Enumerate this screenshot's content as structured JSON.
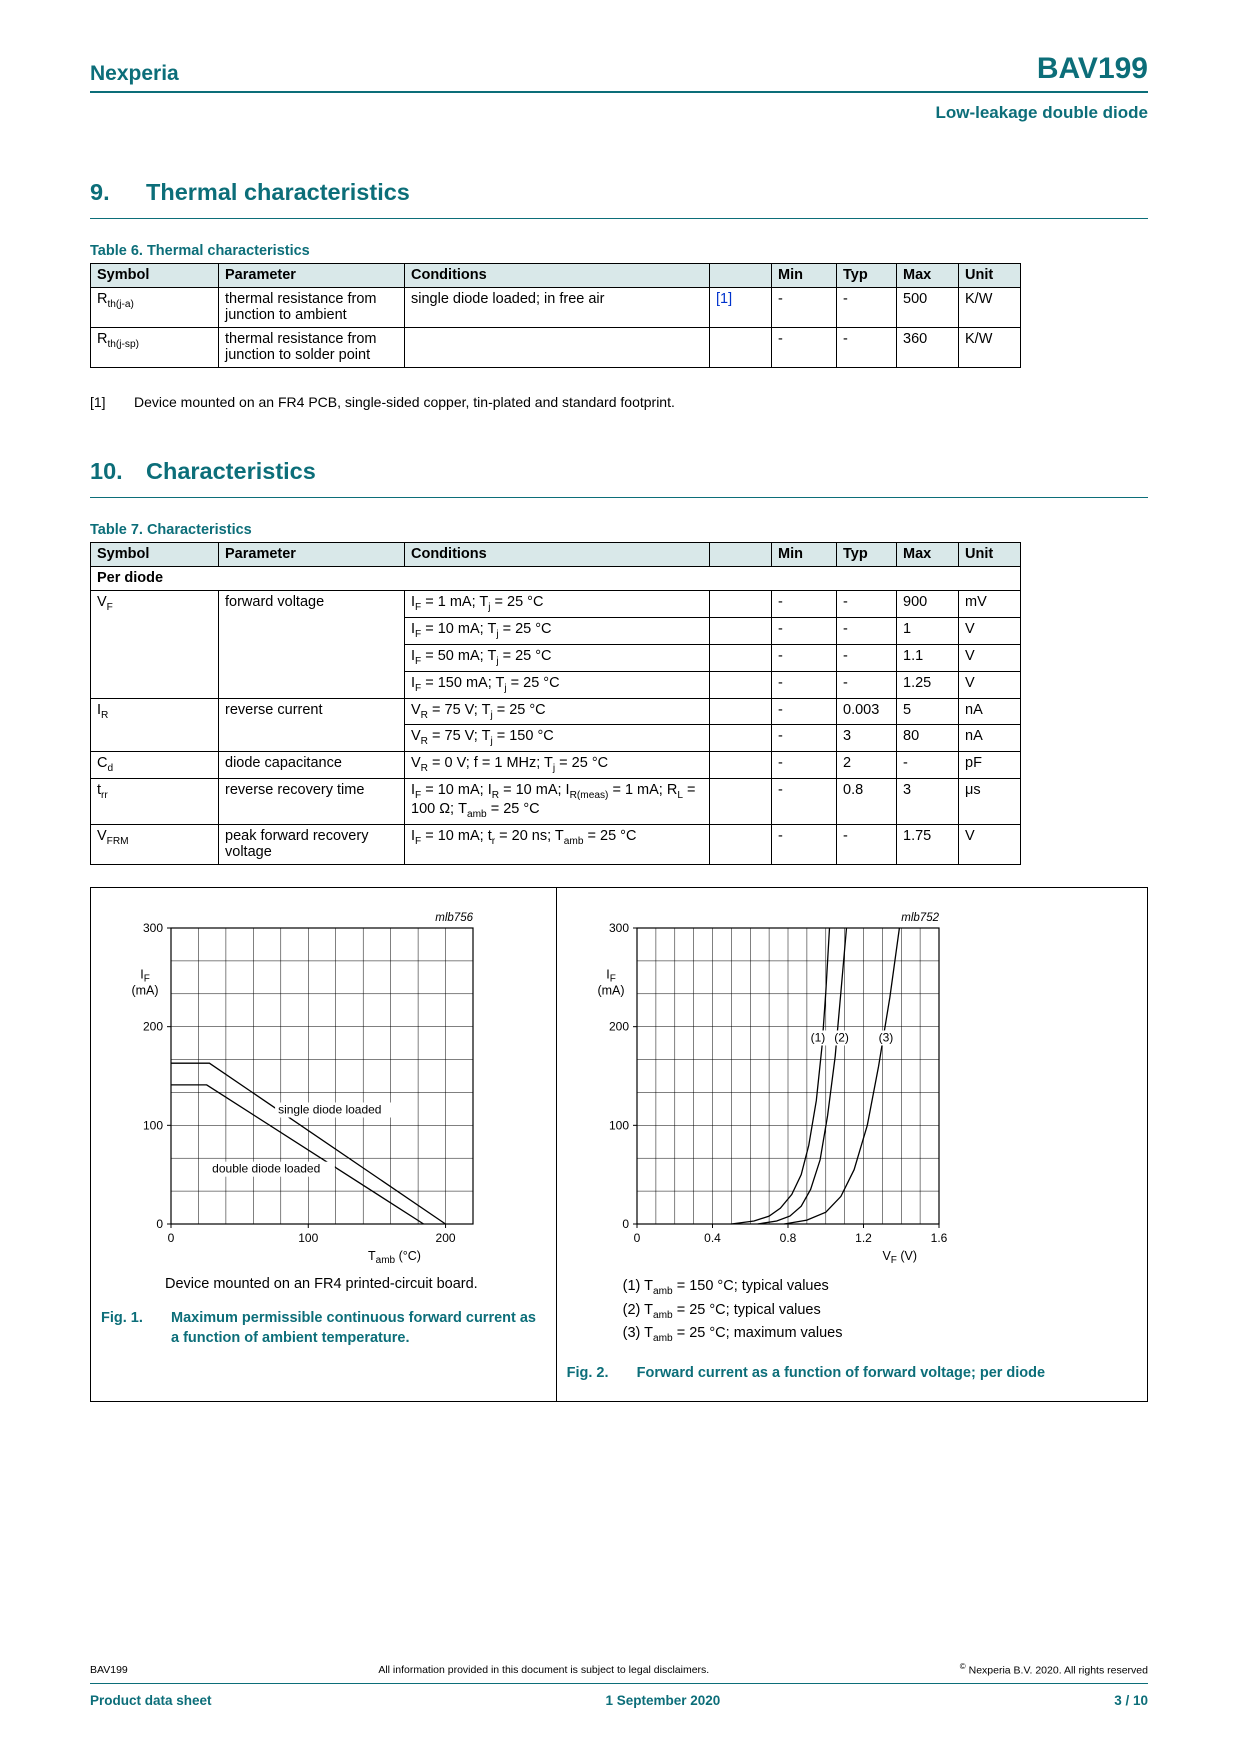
{
  "colors": {
    "accent": "#0c6e79",
    "link": "#0033cc",
    "table_header_bg": "#d9e8e9"
  },
  "header": {
    "brand": "Nexperia",
    "part": "BAV199",
    "subtitle": "Low-leakage double diode"
  },
  "thermal": {
    "number": "9.",
    "title": "Thermal characteristics",
    "table_caption": "Table 6. Thermal characteristics",
    "table": {
      "columns": [
        "Symbol",
        "Parameter",
        "Conditions",
        "",
        "Min",
        "Typ",
        "Max",
        "Unit"
      ],
      "rows": [
        [
          {
            "v": "R<sub>th(j-a)</sub>"
          },
          {
            "v": "thermal resistance from junction to ambient"
          },
          {
            "v": "single diode loaded; in free air"
          },
          {
            "v": "[1]",
            "link": true
          },
          {
            "v": "-"
          },
          {
            "v": "-"
          },
          {
            "v": "500"
          },
          {
            "v": "K/W"
          }
        ],
        [
          {
            "v": "R<sub>th(j-sp)</sub>"
          },
          {
            "v": "thermal resistance from junction to solder point"
          },
          {
            "v": ""
          },
          {
            "v": ""
          },
          {
            "v": "-"
          },
          {
            "v": "-"
          },
          {
            "v": "360"
          },
          {
            "v": "K/W"
          }
        ]
      ]
    },
    "footnote_ref": "[1]",
    "footnote_text": "Device mounted on an FR4 PCB, single-sided copper, tin-plated and standard footprint."
  },
  "characteristics": {
    "number": "10.",
    "title": "Characteristics",
    "table_caption": "Table 7. Characteristics",
    "table": {
      "columns": [
        "Symbol",
        "Parameter",
        "Conditions",
        "",
        "Min",
        "Typ",
        "Max",
        "Unit"
      ],
      "rows": [
        [
          {
            "v": "Per diode",
            "cs": 8,
            "cls": "group"
          }
        ],
        [
          {
            "v": "V<sub>F</sub>",
            "rs": 4
          },
          {
            "v": "forward voltage",
            "rs": 4
          },
          {
            "v": "I<sub>F</sub> = 1 mA; T<sub>j</sub> = 25 °C"
          },
          {
            "v": ""
          },
          {
            "v": "-"
          },
          {
            "v": "-"
          },
          {
            "v": "900"
          },
          {
            "v": "mV"
          }
        ],
        [
          {
            "v": "I<sub>F</sub> = 10 mA; T<sub>j</sub> = 25 °C"
          },
          {
            "v": ""
          },
          {
            "v": "-"
          },
          {
            "v": "-"
          },
          {
            "v": "1"
          },
          {
            "v": "V"
          }
        ],
        [
          {
            "v": "I<sub>F</sub> = 50 mA; T<sub>j</sub> = 25 °C"
          },
          {
            "v": ""
          },
          {
            "v": "-"
          },
          {
            "v": "-"
          },
          {
            "v": "1.1"
          },
          {
            "v": "V"
          }
        ],
        [
          {
            "v": "I<sub>F</sub> = 150 mA; T<sub>j</sub> = 25 °C"
          },
          {
            "v": ""
          },
          {
            "v": "-"
          },
          {
            "v": "-"
          },
          {
            "v": "1.25"
          },
          {
            "v": "V"
          }
        ],
        [
          {
            "v": "I<sub>R</sub>",
            "rs": 2
          },
          {
            "v": "reverse current",
            "rs": 2
          },
          {
            "v": "V<sub>R</sub> = 75 V; T<sub>j</sub> = 25 °C"
          },
          {
            "v": ""
          },
          {
            "v": "-"
          },
          {
            "v": "0.003"
          },
          {
            "v": "5"
          },
          {
            "v": "nA"
          }
        ],
        [
          {
            "v": "V<sub>R</sub> = 75 V; T<sub>j</sub> = 150 °C"
          },
          {
            "v": ""
          },
          {
            "v": "-"
          },
          {
            "v": "3"
          },
          {
            "v": "80"
          },
          {
            "v": "nA"
          }
        ],
        [
          {
            "v": "C<sub>d</sub>"
          },
          {
            "v": "diode capacitance"
          },
          {
            "v": "V<sub>R</sub> = 0 V; f = 1 MHz; T<sub>j</sub> = 25 °C"
          },
          {
            "v": ""
          },
          {
            "v": "-"
          },
          {
            "v": "2"
          },
          {
            "v": "-"
          },
          {
            "v": "pF"
          }
        ],
        [
          {
            "v": "t<sub>rr</sub>"
          },
          {
            "v": "reverse recovery time"
          },
          {
            "v": "I<sub>F</sub> = 10 mA; I<sub>R</sub> = 10 mA; I<sub>R(meas)</sub> = 1 mA; R<sub>L</sub> = 100 Ω; T<sub>amb</sub> = 25 °C"
          },
          {
            "v": ""
          },
          {
            "v": "-"
          },
          {
            "v": "0.8"
          },
          {
            "v": "3"
          },
          {
            "v": "μs"
          }
        ],
        [
          {
            "v": "V<sub>FRM</sub>"
          },
          {
            "v": "peak forward recovery voltage"
          },
          {
            "v": "I<sub>F</sub> = 10 mA; t<sub>r</sub> = 20 ns; T<sub>amb</sub> = 25 °C"
          },
          {
            "v": ""
          },
          {
            "v": "-"
          },
          {
            "v": "-"
          },
          {
            "v": "1.75"
          },
          {
            "v": "V"
          }
        ]
      ]
    }
  },
  "figures": {
    "fig1": {
      "note": "Device mounted on an FR4 printed-circuit board.",
      "label": "Fig. 1.",
      "caption": "Maximum permissible continuous forward current as a function of ambient temperature."
    },
    "fig2": {
      "notes": [
        "(1) T<sub>amb</sub> = 150 °C; typical values",
        "(2) T<sub>amb</sub> = 25 °C; typical values",
        "(3) T<sub>amb</sub> = 25 °C; maximum values"
      ],
      "label": "Fig. 2.",
      "caption": "Forward current as a function of forward voltage; per diode"
    }
  },
  "chart_data": [
    {
      "type": "line",
      "id": "mlb756",
      "xlabel_main": "T",
      "xlabel_sub": "amb",
      "xlabel_unit": "(°C)",
      "xlabel_frac": 0.74,
      "ylabel_main": "I",
      "ylabel_sub": "F",
      "ylabel_unit": "(mA)",
      "xlim": [
        0,
        220
      ],
      "ylim": [
        0,
        300
      ],
      "x_ticks": [
        0,
        100,
        200
      ],
      "y_ticks": [
        0,
        100,
        200,
        300
      ],
      "x_divisions": 11,
      "y_divisions": 9,
      "series": [
        {
          "name": "single diode loaded",
          "points": [
            [
              0,
              163
            ],
            [
              28,
              163
            ],
            [
              200,
              0
            ]
          ]
        },
        {
          "name": "double diode loaded",
          "points": [
            [
              0,
              141
            ],
            [
              26,
              141
            ],
            [
              184,
              0
            ]
          ]
        }
      ],
      "annotations": [
        {
          "text": "single diode loaded",
          "x": 78,
          "y": 112
        },
        {
          "text": "double diode loaded",
          "x": 30,
          "y": 52
        }
      ]
    },
    {
      "type": "line",
      "id": "mlb752",
      "xlabel_main": "V",
      "xlabel_sub": "F",
      "xlabel_unit": "(V)",
      "xlabel_frac": 0.87,
      "ylabel_main": "I",
      "ylabel_sub": "F",
      "ylabel_unit": "(mA)",
      "xlim": [
        0,
        1.6
      ],
      "ylim": [
        0,
        300
      ],
      "x_ticks": [
        0,
        0.4,
        0.8,
        1.2,
        1.6
      ],
      "y_ticks": [
        0,
        100,
        200,
        300
      ],
      "x_divisions": 16,
      "y_divisions": 9,
      "series": [
        {
          "name": "(1) Tamb = 150 °C; typical values",
          "points": [
            [
              0.5,
              0
            ],
            [
              0.62,
              3
            ],
            [
              0.7,
              8
            ],
            [
              0.76,
              16
            ],
            [
              0.82,
              30
            ],
            [
              0.87,
              50
            ],
            [
              0.91,
              80
            ],
            [
              0.95,
              125
            ],
            [
              0.98,
              180
            ],
            [
              1.0,
              235
            ],
            [
              1.02,
              300
            ]
          ]
        },
        {
          "name": "(2) Tamb = 25 °C; typical values",
          "points": [
            [
              0.64,
              0
            ],
            [
              0.74,
              3
            ],
            [
              0.81,
              8
            ],
            [
              0.87,
              18
            ],
            [
              0.92,
              35
            ],
            [
              0.97,
              65
            ],
            [
              1.01,
              110
            ],
            [
              1.05,
              170
            ],
            [
              1.08,
              235
            ],
            [
              1.11,
              300
            ]
          ]
        },
        {
          "name": "(3) Tamb = 25 °C; maximum values",
          "points": [
            [
              0.78,
              0
            ],
            [
              0.9,
              4
            ],
            [
              1.0,
              12
            ],
            [
              1.08,
              28
            ],
            [
              1.15,
              55
            ],
            [
              1.22,
              100
            ],
            [
              1.28,
              160
            ],
            [
              1.34,
              230
            ],
            [
              1.39,
              300
            ]
          ]
        }
      ],
      "annotations": [
        {
          "text": "(1)",
          "x": 0.92,
          "y": 185
        },
        {
          "text": "(2)",
          "x": 1.045,
          "y": 185
        },
        {
          "text": "(3)",
          "x": 1.28,
          "y": 185
        }
      ]
    }
  ],
  "footer": {
    "doc_id": "BAV199",
    "disclaimer": "All information provided in this document is subject to legal disclaimers.",
    "copyright": "<sup>©</sup> Nexperia B.V. 2020. All rights reserved",
    "doc_type": "Product data sheet",
    "date": "1 September 2020",
    "page_num": "3 / 10"
  }
}
